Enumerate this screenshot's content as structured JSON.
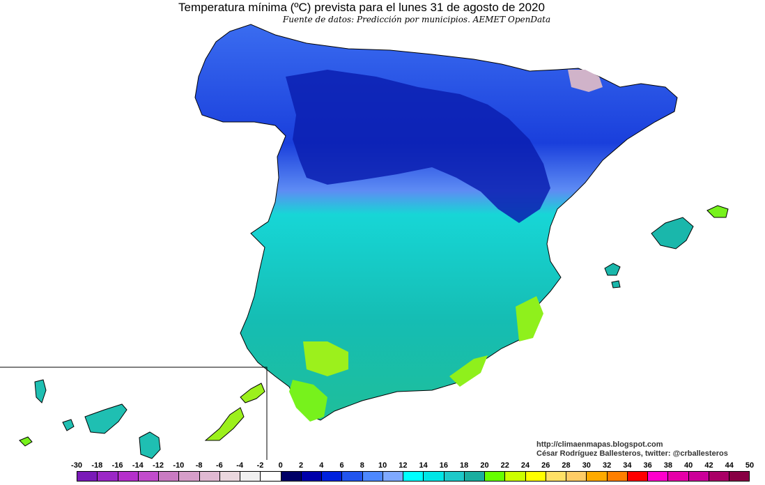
{
  "title": "Temperatura mínima (ºC) prevista para el lunes 31 de agosto de 2020",
  "subtitle": "Fuente de datos: Predicción por municipios. AEMET OpenData",
  "credits": {
    "url": "http://climaenmapas.blogspot.com",
    "author": "César Rodríguez Ballesteros, twitter: @crballesteros"
  },
  "legend": {
    "tick_labels": [
      "-30",
      "-18",
      "-16",
      "-14",
      "-12",
      "-10",
      "-8",
      "-6",
      "-4",
      "-2",
      "0",
      "2",
      "4",
      "6",
      "8",
      "10",
      "12",
      "14",
      "16",
      "18",
      "20",
      "22",
      "24",
      "26",
      "28",
      "30",
      "32",
      "34",
      "36",
      "38",
      "40",
      "42",
      "44",
      "50"
    ],
    "colors": [
      "#7a1ab8",
      "#9b27c6",
      "#b52fcb",
      "#c24bcc",
      "#c97bc2",
      "#d69ec9",
      "#e0b9d2",
      "#ead7de",
      "#f0f0f0",
      "#ffffff",
      "#000066",
      "#0000aa",
      "#0022dd",
      "#2255ee",
      "#4d88ff",
      "#7fa9ff",
      "#00ffff",
      "#00e6e6",
      "#1ec9c9",
      "#1aaea0",
      "#66ff00",
      "#ccff00",
      "#ffff00",
      "#ffe066",
      "#ffcc66",
      "#ffaa00",
      "#ff7f00",
      "#ff0000",
      "#ff00cc",
      "#e600a8",
      "#cc0099",
      "#aa0066",
      "#880044"
    ]
  },
  "map": {
    "regions": [
      {
        "name": "peninsula-north",
        "color": "#1f48e8"
      },
      {
        "name": "peninsula-center",
        "color": "#13cfcf"
      },
      {
        "name": "peninsula-south",
        "color": "#17b3a6"
      },
      {
        "name": "balearic-islands",
        "color": "#1ab7ab"
      },
      {
        "name": "canary-islands",
        "color": "#1fbfb2"
      }
    ]
  }
}
